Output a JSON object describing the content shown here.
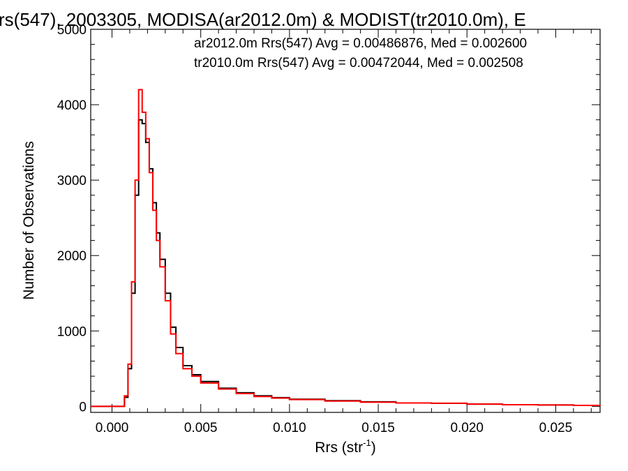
{
  "chart_data": {
    "type": "line",
    "title": "rs(547), 2003305, MODISA(ar2012.0m) & MODIST(tr2010.0m), E",
    "xlabel": "Rrs (str",
    "xlabel_sup": "-1",
    "xlabel_close": ")",
    "ylabel": "Number of Observations",
    "xlim": [
      -0.0012,
      0.0275
    ],
    "ylim": [
      -80,
      5000
    ],
    "x_ticks": [
      0.0,
      0.005,
      0.01,
      0.015,
      0.02,
      0.025
    ],
    "x_tick_labels": [
      "0.000",
      "0.005",
      "0.010",
      "0.015",
      "0.020",
      "0.025"
    ],
    "y_ticks": [
      0,
      1000,
      2000,
      3000,
      4000,
      5000
    ],
    "y_tick_labels": [
      "0",
      "1000",
      "2000",
      "3000",
      "4000",
      "5000"
    ],
    "annotations": [
      {
        "text": "ar2012.0m Rrs(547) Avg = 0.00486876, Med = 0.002600",
        "color": "#000000"
      },
      {
        "text": "tr2010.0m Rrs(547) Avg = 0.00472044, Med = 0.002508",
        "color": "#ff0000"
      }
    ],
    "series": [
      {
        "color": "#000000",
        "x": [
          -0.0012,
          0.0005,
          0.0007,
          0.0009,
          0.0011,
          0.0013,
          0.0015,
          0.0017,
          0.0019,
          0.0021,
          0.0023,
          0.0025,
          0.0027,
          0.003,
          0.0033,
          0.0036,
          0.004,
          0.0045,
          0.005,
          0.006,
          0.007,
          0.008,
          0.009,
          0.01,
          0.012,
          0.014,
          0.016,
          0.018,
          0.02,
          0.022,
          0.024,
          0.026,
          0.0275
        ],
        "y": [
          0,
          0,
          120,
          500,
          1500,
          2800,
          3800,
          3750,
          3500,
          3150,
          2700,
          2300,
          1950,
          1500,
          1050,
          780,
          540,
          420,
          330,
          240,
          180,
          140,
          115,
          95,
          75,
          60,
          45,
          40,
          30,
          22,
          18,
          12,
          8
        ]
      },
      {
        "color": "#ff0000",
        "x": [
          -0.0012,
          0.0005,
          0.0007,
          0.0009,
          0.0011,
          0.0013,
          0.0015,
          0.0017,
          0.0019,
          0.0021,
          0.0023,
          0.0025,
          0.0027,
          0.003,
          0.0033,
          0.0036,
          0.004,
          0.0045,
          0.005,
          0.006,
          0.007,
          0.008,
          0.009,
          0.01,
          0.012,
          0.014,
          0.016,
          0.018,
          0.02,
          0.022,
          0.024,
          0.026,
          0.0275
        ],
        "y": [
          0,
          0,
          140,
          560,
          1650,
          3000,
          4200,
          3900,
          3550,
          3100,
          2600,
          2200,
          1850,
          1400,
          960,
          700,
          500,
          400,
          310,
          230,
          170,
          130,
          110,
          90,
          70,
          55,
          45,
          42,
          30,
          22,
          18,
          12,
          8
        ]
      }
    ]
  }
}
